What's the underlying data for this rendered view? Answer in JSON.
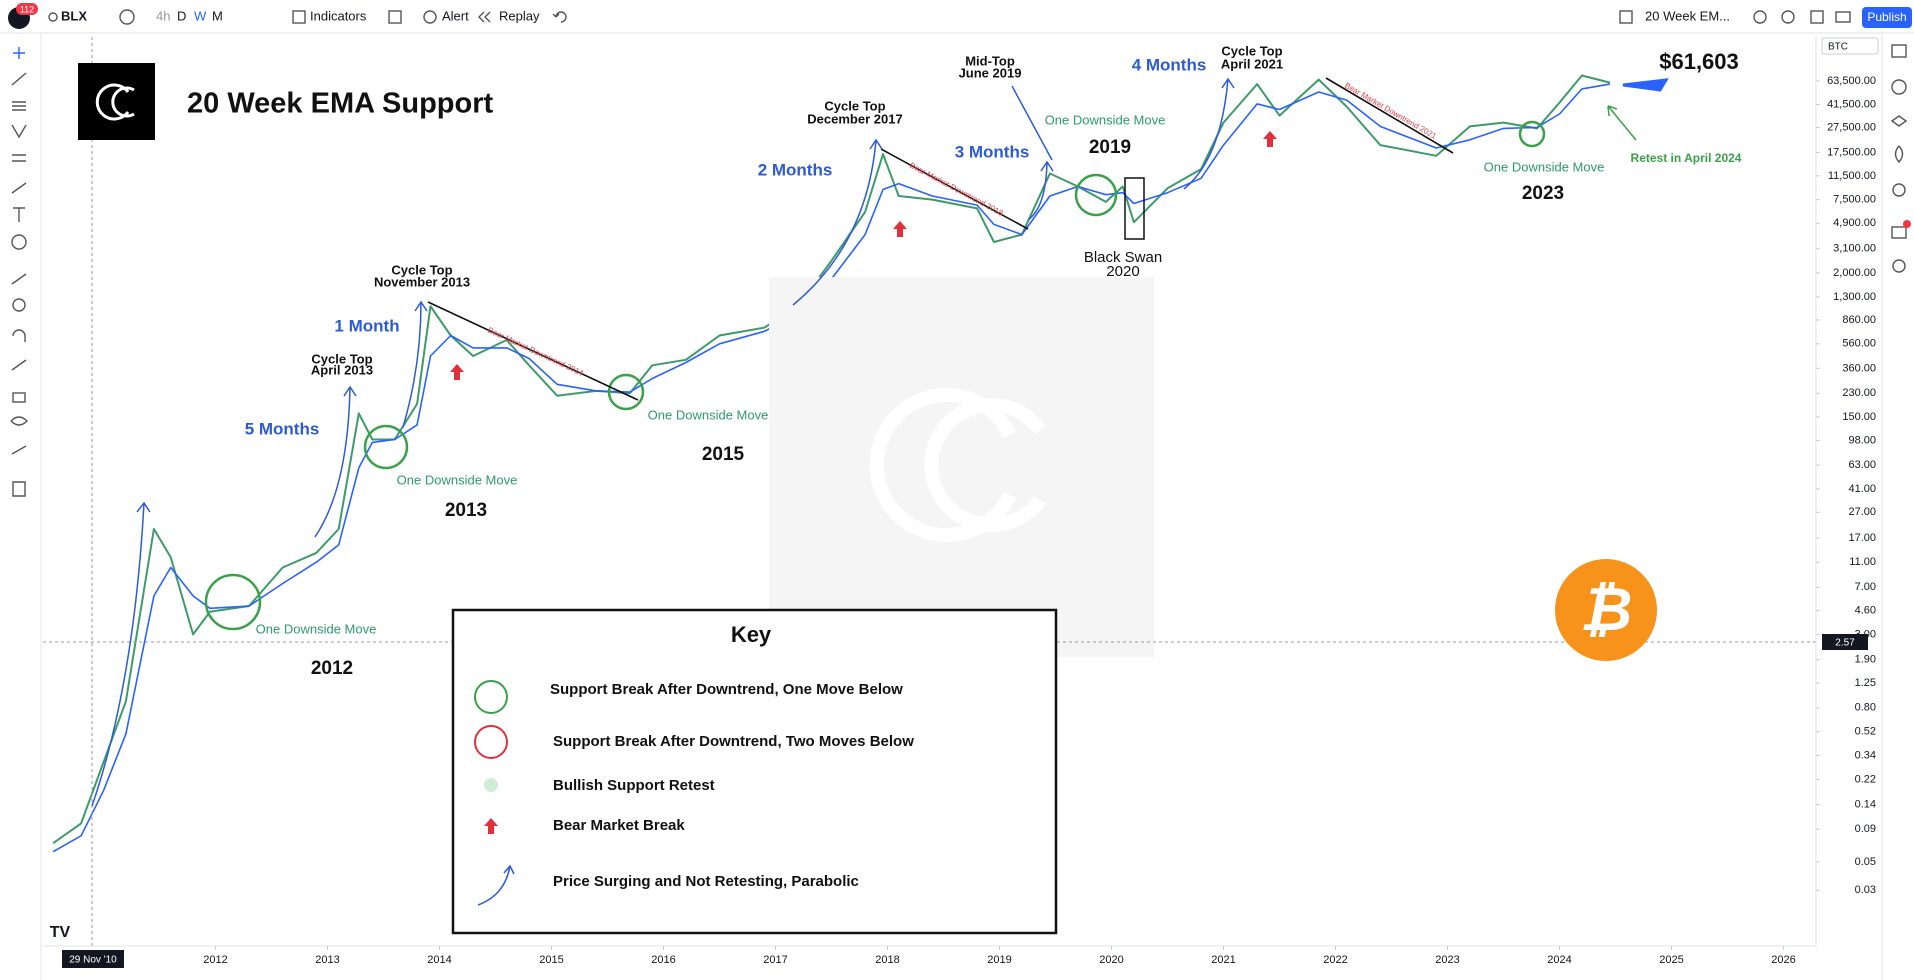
{
  "toolbar": {
    "badge": "112",
    "symbol": "BLX",
    "intervals": [
      "4h",
      "D",
      "W",
      "M"
    ],
    "indicators": "Indicators",
    "alert": "Alert",
    "replay": "Replay",
    "layout": "20 Week EM...",
    "publish": "Publish"
  },
  "price_scale_currency": "BTC",
  "crosshair": {
    "date": "29 Nov '10",
    "price": "2.57"
  },
  "chart_data": {
    "type": "line",
    "title": "20 Week EMA Support",
    "log_scale": true,
    "grid": false,
    "x": [
      2010.55,
      2010.8,
      2011.0,
      2011.2,
      2011.45,
      2011.6,
      2011.8,
      2011.95,
      2012.3,
      2012.6,
      2012.9,
      2013.1,
      2013.28,
      2013.4,
      2013.6,
      2013.8,
      2013.92,
      2014.1,
      2014.3,
      2014.6,
      2014.8,
      2015.05,
      2015.4,
      2015.7,
      2015.9,
      2016.2,
      2016.5,
      2016.9,
      2017.2,
      2017.5,
      2017.8,
      2017.96,
      2018.1,
      2018.4,
      2018.8,
      2018.95,
      2019.2,
      2019.45,
      2019.7,
      2019.95,
      2020.1,
      2020.2,
      2020.5,
      2020.8,
      2021.0,
      2021.3,
      2021.5,
      2021.85,
      2022.1,
      2022.4,
      2022.9,
      2023.2,
      2023.5,
      2023.8,
      2024.0,
      2024.2,
      2024.45
    ],
    "series": [
      {
        "color": "#3f9a6a",
        "values": [
          0.07,
          0.1,
          0.3,
          0.9,
          20,
          12,
          3,
          4.5,
          5,
          10,
          13,
          20,
          160,
          100,
          100,
          190,
          1100,
          650,
          450,
          600,
          380,
          220,
          240,
          230,
          380,
          420,
          650,
          750,
          1100,
          2500,
          6000,
          17000,
          8000,
          7500,
          6400,
          3500,
          4000,
          12000,
          9500,
          7200,
          9500,
          5000,
          9200,
          13000,
          30000,
          60000,
          34000,
          65000,
          40000,
          20000,
          16500,
          28000,
          30000,
          27000,
          43000,
          70000,
          61603
        ]
      },
      {
        "color": "#2962ff",
        "values": [
          0.06,
          0.08,
          0.18,
          0.5,
          6,
          10,
          6,
          4.8,
          5,
          7.5,
          11,
          15,
          60,
          95,
          100,
          130,
          450,
          650,
          520,
          520,
          430,
          270,
          240,
          235,
          300,
          400,
          560,
          700,
          950,
          1800,
          4000,
          9000,
          10000,
          8000,
          6800,
          4800,
          4000,
          8000,
          9500,
          8200,
          8500,
          7000,
          8500,
          11000,
          20000,
          42000,
          38000,
          52000,
          45000,
          28000,
          19000,
          22000,
          27000,
          27500,
          35000,
          55000,
          60000
        ]
      }
    ],
    "xlim": [
      2010.46,
      2026.29
    ],
    "xticks": [
      2012,
      2013,
      2014,
      2015,
      2016,
      2017,
      2018,
      2019,
      2020,
      2021,
      2022,
      2023,
      2024,
      2025,
      2026
    ],
    "ylim": [
      0.011,
      140000
    ],
    "yticks": [
      {
        "value": 63500,
        "label": "63,500.00"
      },
      {
        "value": 41500,
        "label": "41,500.00"
      },
      {
        "value": 27500,
        "label": "27,500.00"
      },
      {
        "value": 17500,
        "label": "17,500.00"
      },
      {
        "value": 11500,
        "label": "11,500.00"
      },
      {
        "value": 7500,
        "label": "7,500.00"
      },
      {
        "value": 4900,
        "label": "4,900.00"
      },
      {
        "value": 3100,
        "label": "3,100.00"
      },
      {
        "value": 2000,
        "label": "2,000.00"
      },
      {
        "value": 1300,
        "label": "1,300.00"
      },
      {
        "value": 860,
        "label": "860.00"
      },
      {
        "value": 560,
        "label": "560.00"
      },
      {
        "value": 360,
        "label": "360.00"
      },
      {
        "value": 230,
        "label": "230.00"
      },
      {
        "value": 150,
        "label": "150.00"
      },
      {
        "value": 98,
        "label": "98.00"
      },
      {
        "value": 63,
        "label": "63.00"
      },
      {
        "value": 41,
        "label": "41.00"
      },
      {
        "value": 27,
        "label": "27.00"
      },
      {
        "value": 17,
        "label": "17.00"
      },
      {
        "value": 11,
        "label": "11.00"
      },
      {
        "value": 7,
        "label": "7.00"
      },
      {
        "value": 4.6,
        "label": "4.60"
      },
      {
        "value": 3,
        "label": "3.00"
      },
      {
        "value": 1.9,
        "label": "1.90"
      },
      {
        "value": 1.25,
        "label": "1.25"
      },
      {
        "value": 0.8,
        "label": "0.80"
      },
      {
        "value": 0.52,
        "label": "0.52"
      },
      {
        "value": 0.34,
        "label": "0.34"
      },
      {
        "value": 0.22,
        "label": "0.22"
      },
      {
        "value": 0.14,
        "label": "0.14"
      },
      {
        "value": 0.09,
        "label": "0.09"
      },
      {
        "value": 0.05,
        "label": "0.05"
      },
      {
        "value": 0.03,
        "label": "0.03"
      }
    ]
  },
  "annotations": {
    "cycle_tops": [
      {
        "title": "Cycle Top",
        "date": "April 2013"
      },
      {
        "title": "Cycle Top",
        "date": "November 2013"
      },
      {
        "title": "Cycle Top",
        "date": "December 2017"
      },
      {
        "title": "Mid-Top",
        "date": "June 2019"
      },
      {
        "title": "Cycle Top",
        "date": "April 2021"
      }
    ],
    "periods": [
      "5 Months",
      "1 Month",
      "2 Months",
      "3 Months",
      "4 Months"
    ],
    "downside_moves": [
      "One Downside Move",
      "One Downside Move",
      "One Downside Move",
      "One Downside Move",
      "One Downside Move"
    ],
    "years": [
      "2012",
      "2013",
      "2015",
      "2019",
      "2023"
    ],
    "black_swan": {
      "title": "Black Swan",
      "year": "2020"
    },
    "downtrends": [
      "Bear Market Downtrend 2014",
      "Bear Market Downtrend 2018",
      "Bear Market Downtrend 2021"
    ],
    "current_price": "$61,603",
    "retest": "Retest in April 2024"
  },
  "key": {
    "title": "Key",
    "items": [
      "Support Break After Downtrend, One Move Below",
      "Support Break After Downtrend, Two Moves Below",
      "Bullish Support Retest",
      "Bear Market Break",
      "Price Surging and Not Retesting, Parabolic"
    ]
  }
}
